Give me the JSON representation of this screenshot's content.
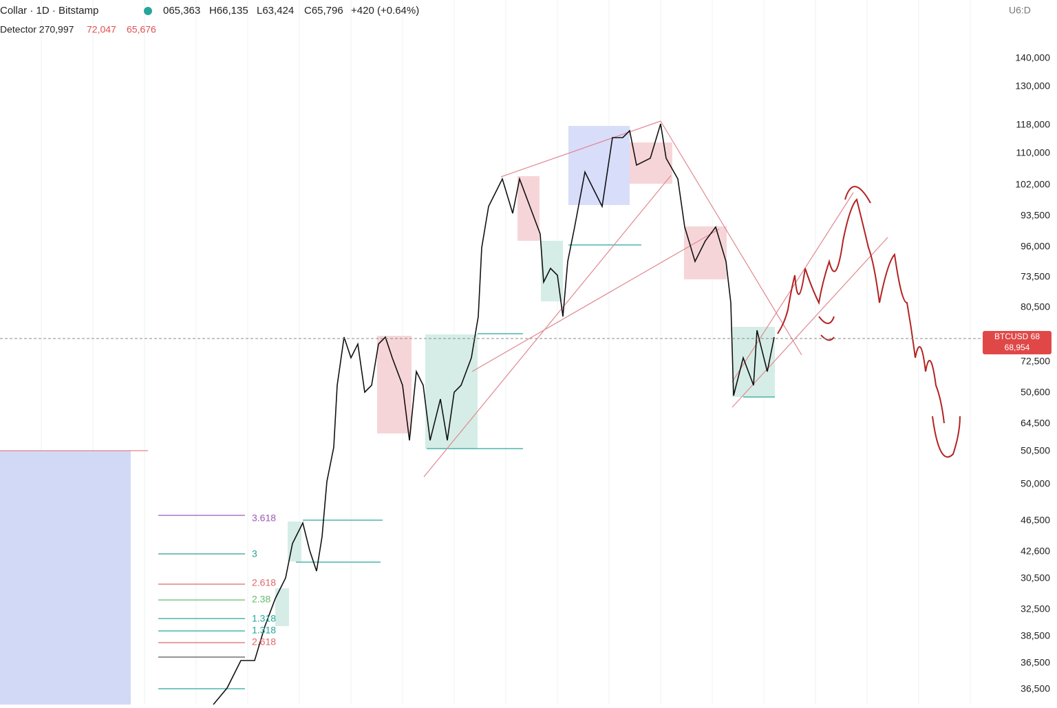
{
  "header": {
    "symbol": "Collar · 1D · Bitstamp",
    "open": "065,363",
    "high": "H66,135",
    "low": "L63,424",
    "close": "C65,796",
    "change": "+420 (+0.64%)",
    "timeframe": "U6:D"
  },
  "indicator": {
    "name": "Detector 270,997",
    "value1": "72,047",
    "value2": "65,676"
  },
  "axis": {
    "labels": [
      "140,000",
      "130,000",
      "118,000",
      "110,000",
      "102,000",
      "93,500",
      "96,000",
      "73,500",
      "80,500",
      "72,500",
      "50,600",
      "64,500",
      "50,500",
      "50,000",
      "46,500",
      "42,600",
      "30,500",
      "32,500",
      "38,500",
      "36,500",
      "36,500"
    ]
  },
  "price_tag": {
    "symbol": "BTCUSD 68",
    "value": "68,954"
  },
  "fib_labels": [
    "3.618",
    "3",
    "2.618",
    "2.38",
    "1.318",
    "1.318",
    "2.618"
  ]
}
